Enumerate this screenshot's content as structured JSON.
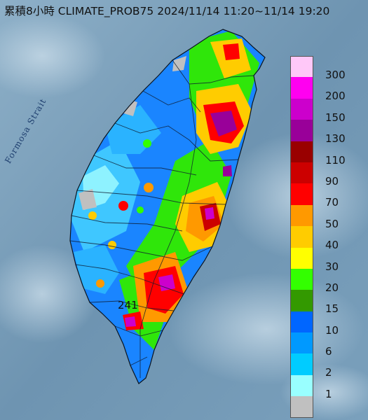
{
  "title": "累積8小時 CLIMATE_PROB75 2024/11/14 11:20~11/14 19:20",
  "strait_label": "Formosa Strait",
  "max_value_label": "241",
  "legend": [
    {
      "label": "300",
      "color": "#ffc8f8"
    },
    {
      "label": "200",
      "color": "#ff00f0"
    },
    {
      "label": "150",
      "color": "#cc00cc"
    },
    {
      "label": "130",
      "color": "#990099"
    },
    {
      "label": "110",
      "color": "#990000"
    },
    {
      "label": "90",
      "color": "#cc0000"
    },
    {
      "label": "70",
      "color": "#ff0000"
    },
    {
      "label": "50",
      "color": "#ff9900"
    },
    {
      "label": "40",
      "color": "#ffcc00"
    },
    {
      "label": "30",
      "color": "#ffff00"
    },
    {
      "label": "20",
      "color": "#33ff00"
    },
    {
      "label": "15",
      "color": "#339900"
    },
    {
      "label": "10",
      "color": "#0066ff"
    },
    {
      "label": "6",
      "color": "#0099ff"
    },
    {
      "label": "2",
      "color": "#00ccff"
    },
    {
      "label": "1",
      "color": "#99ffff"
    },
    {
      "label": "",
      "color": "#c0c0c0"
    }
  ]
}
